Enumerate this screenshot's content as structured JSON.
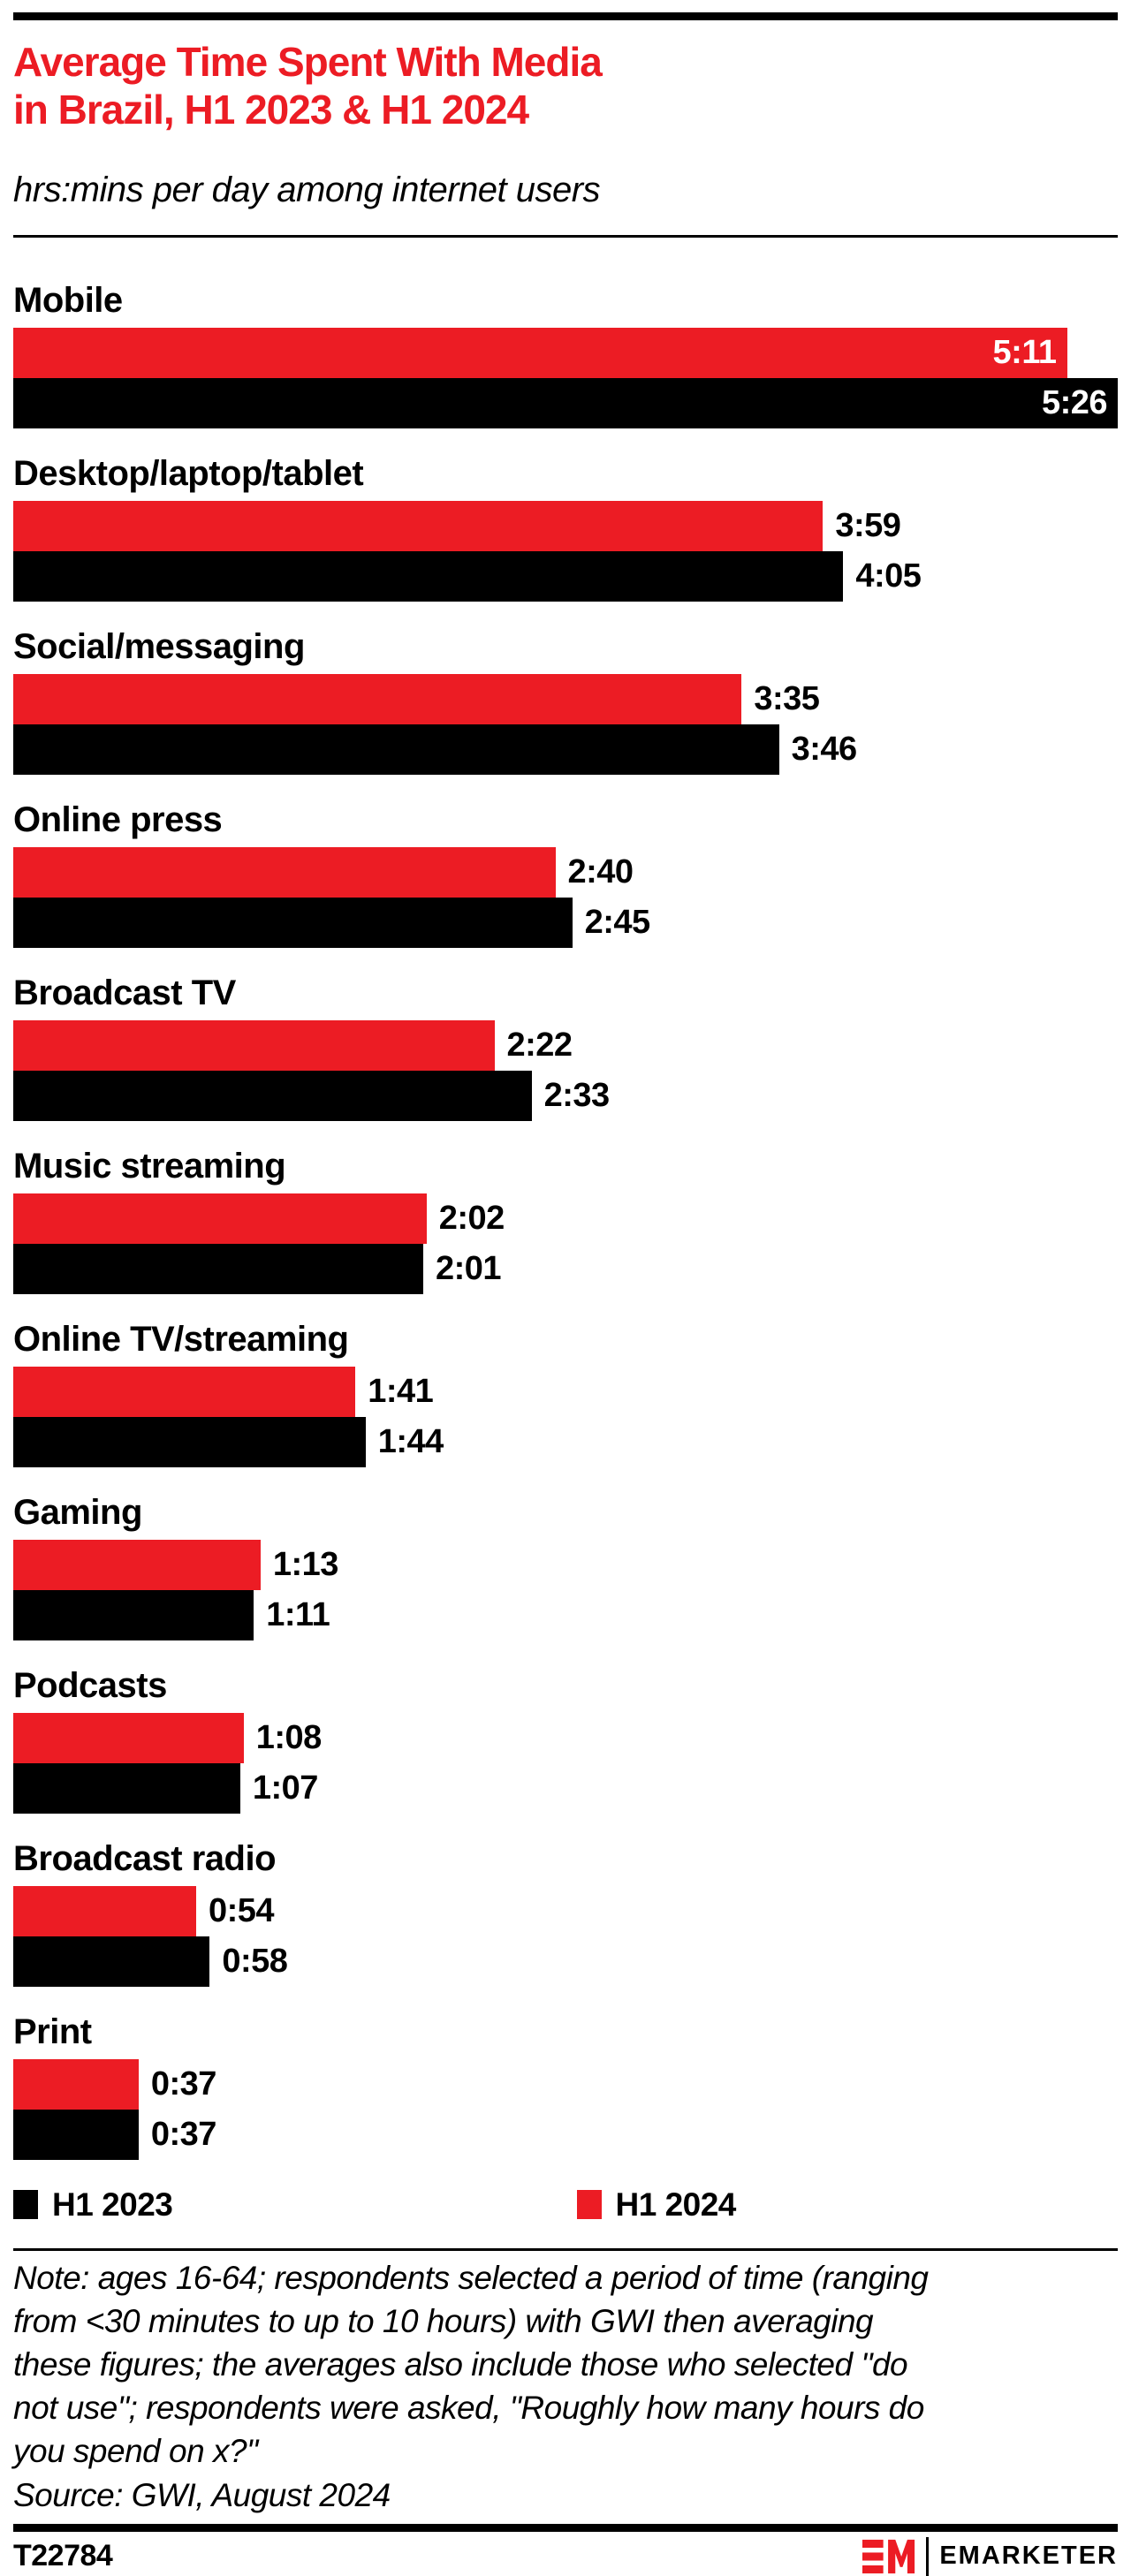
{
  "header": {
    "title": "Average Time Spent With Media\nin Brazil, H1 2023 & H1 2024",
    "subtitle": "hrs:mins per day among internet users"
  },
  "chart_data": {
    "type": "bar",
    "orientation": "horizontal",
    "unit": "hrs:mins per day",
    "max_minutes": 326,
    "value_label_placement": "outside right of bar; inside bar (white) when bar is near full width (Mobile)",
    "categories": [
      "Mobile",
      "Desktop/laptop/tablet",
      "Social/messaging",
      "Online press",
      "Broadcast TV",
      "Music streaming",
      "Online TV/streaming",
      "Gaming",
      "Podcasts",
      "Broadcast radio",
      "Print"
    ],
    "series": [
      {
        "name": "H1 2024",
        "color": "#ec1c24",
        "labels": [
          "5:11",
          "3:59",
          "3:35",
          "2:40",
          "2:22",
          "2:02",
          "1:41",
          "1:13",
          "1:08",
          "0:54",
          "0:37"
        ],
        "minutes": [
          311,
          239,
          215,
          160,
          142,
          122,
          101,
          73,
          68,
          54,
          37
        ]
      },
      {
        "name": "H1 2023",
        "color": "#000000",
        "labels": [
          "5:26",
          "4:05",
          "3:46",
          "2:45",
          "2:33",
          "2:01",
          "1:44",
          "1:11",
          "1:07",
          "0:58",
          "0:37"
        ],
        "minutes": [
          326,
          245,
          226,
          165,
          153,
          121,
          104,
          71,
          67,
          58,
          37
        ]
      }
    ],
    "bar_order_top_to_bottom": [
      "H1 2024",
      "H1 2023"
    ],
    "grid": "off",
    "legend_position": "bottom"
  },
  "legend": {
    "items": [
      {
        "label": "H1 2023",
        "color": "#000000"
      },
      {
        "label": "H1 2024",
        "color": "#ec1c24"
      }
    ]
  },
  "note": "Note: ages 16-64; respondents selected a period of time (ranging\nfrom <30 minutes to up to 10 hours) with GWI then averaging\nthese figures; the averages also include those who selected \"do\nnot use\"; respondents were asked, \"Roughly how many hours do\nyou spend on x?\"",
  "source": "Source: GWI, August 2024",
  "footer": {
    "chart_id": "T22784",
    "logo_monogram": "EM",
    "brand": "EMARKETER"
  },
  "colors": {
    "accent_red": "#ec1c24",
    "black": "#000000",
    "background": "#ffffff"
  }
}
